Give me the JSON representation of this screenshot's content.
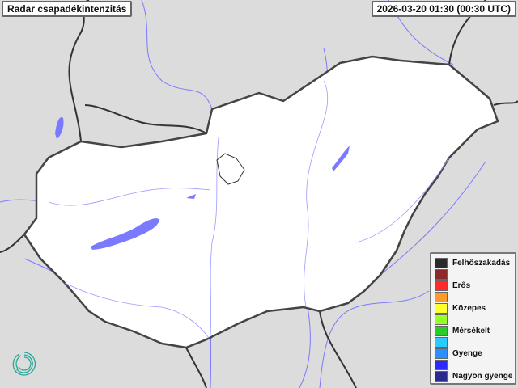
{
  "header": {
    "title": "Radar csapadékintenzitás",
    "timestamp": "2026-03-20 01:30 (00:30 UTC)"
  },
  "legend": {
    "items": [
      {
        "label": "Felhőszakadás",
        "color": "#2b2b2b"
      },
      {
        "label": "",
        "color": "#8b2a2a"
      },
      {
        "label": "Erős",
        "color": "#ff2a2a"
      },
      {
        "label": "",
        "color": "#ff9a2a"
      },
      {
        "label": "Közepes",
        "color": "#ffff2a"
      },
      {
        "label": "",
        "color": "#99ff2a"
      },
      {
        "label": "Mérsékelt",
        "color": "#2acc2a"
      },
      {
        "label": "",
        "color": "#2accff"
      },
      {
        "label": "Gyenge",
        "color": "#2a8fff"
      },
      {
        "label": "",
        "color": "#2a2aff"
      },
      {
        "label": "Nagyon gyenge",
        "color": "#2a2a8f"
      }
    ]
  },
  "map": {
    "country_fill": "#ffffff",
    "surroundings_fill": "#dcdcdc",
    "border_color": "#444444",
    "water_color": "#7a7aff"
  },
  "logo": {
    "icon": "spiral-logo-icon",
    "color": "#2aa89a"
  }
}
